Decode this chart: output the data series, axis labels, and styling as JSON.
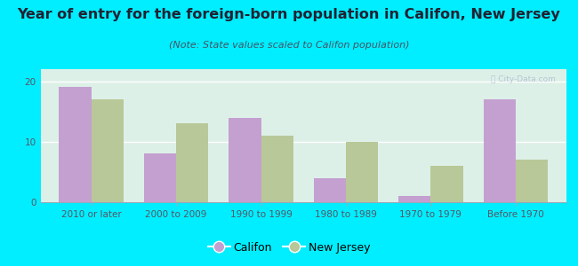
{
  "title": "Year of entry for the foreign-born population in Califon, New Jersey",
  "subtitle": "(Note: State values scaled to Califon population)",
  "categories": [
    "2010 or later",
    "2000 to 2009",
    "1990 to 1999",
    "1980 to 1989",
    "1970 to 1979",
    "Before 1970"
  ],
  "califon_values": [
    19,
    8,
    14,
    4,
    1,
    17
  ],
  "nj_values": [
    17,
    13,
    11,
    10,
    6,
    7
  ],
  "califon_color": "#c4a0d0",
  "nj_color": "#b8c898",
  "background_color": "#00eeff",
  "plot_bg_top": "#d8f0e8",
  "plot_bg_bottom": "#e8f8f0",
  "ylim": [
    0,
    22
  ],
  "yticks": [
    0,
    10,
    20
  ],
  "bar_width": 0.38,
  "title_fontsize": 11.5,
  "subtitle_fontsize": 8,
  "tick_fontsize": 7.5,
  "legend_fontsize": 9
}
